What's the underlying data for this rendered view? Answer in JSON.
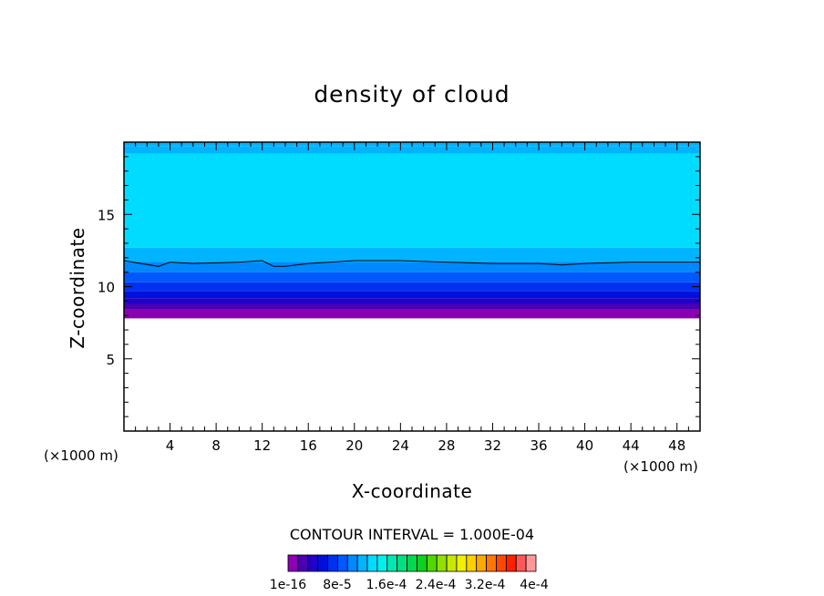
{
  "chart_data": {
    "type": "heatmap",
    "title": "density of cloud",
    "xlabel": "X-coordinate",
    "ylabel": "Z-coordinate",
    "x_unit": "(×1000 m)",
    "z_unit": "(×1000 m)",
    "xlim": [
      0,
      50
    ],
    "ylim": [
      0,
      20
    ],
    "x_ticks": [
      "4",
      "8",
      "12",
      "16",
      "20",
      "24",
      "28",
      "32",
      "36",
      "40",
      "44",
      "48"
    ],
    "y_ticks": [
      "5",
      "10",
      "15"
    ],
    "contour_interval_text": "CONTOUR INTERVAL = 1.000E-04",
    "colorbar_labels": [
      "1e-16",
      "8e-5",
      "1.6e-4",
      "2.4e-4",
      "3.2e-4",
      "4e-4"
    ],
    "colorbar_colors": [
      "#8a00b2",
      "#4a00b0",
      "#2200c8",
      "#0010dc",
      "#0030f0",
      "#0058ff",
      "#0088ff",
      "#00b4ff",
      "#00dcff",
      "#00f0e8",
      "#00e8b0",
      "#00e080",
      "#00d850",
      "#10d020",
      "#50d800",
      "#90e000",
      "#c8e800",
      "#f0f000",
      "#ffd000",
      "#ffa800",
      "#ff7800",
      "#ff4800",
      "#ff2000",
      "#ff5858",
      "#ff9898"
    ],
    "cloud_layers": [
      {
        "z_bottom": 7.8,
        "z_top": 8.4,
        "color": "#8a00b2"
      },
      {
        "z_bottom": 8.4,
        "z_top": 8.8,
        "color": "#4a00b0"
      },
      {
        "z_bottom": 8.8,
        "z_top": 9.2,
        "color": "#2200c8"
      },
      {
        "z_bottom": 9.2,
        "z_top": 9.7,
        "color": "#0010dc"
      },
      {
        "z_bottom": 9.7,
        "z_top": 10.3,
        "color": "#0030f0"
      },
      {
        "z_bottom": 10.3,
        "z_top": 11.0,
        "color": "#0058ff"
      },
      {
        "z_bottom": 11.0,
        "z_top": 11.7,
        "color": "#0088ff"
      },
      {
        "z_bottom": 11.7,
        "z_top": 12.7,
        "color": "#00b4ff"
      },
      {
        "z_bottom": 12.7,
        "z_top": 19.2,
        "color": "#00dcff"
      },
      {
        "z_bottom": 19.2,
        "z_top": 19.7,
        "color": "#00b4ff"
      }
    ],
    "contour_line": {
      "x": [
        0,
        3,
        4,
        6,
        10,
        12,
        13,
        14,
        16,
        20,
        24,
        28,
        32,
        36,
        38,
        40,
        44,
        48,
        50
      ],
      "z": [
        11.8,
        11.4,
        11.7,
        11.6,
        11.7,
        11.8,
        11.4,
        11.4,
        11.6,
        11.8,
        11.8,
        11.7,
        11.6,
        11.6,
        11.5,
        11.6,
        11.7,
        11.7,
        11.7
      ]
    }
  }
}
